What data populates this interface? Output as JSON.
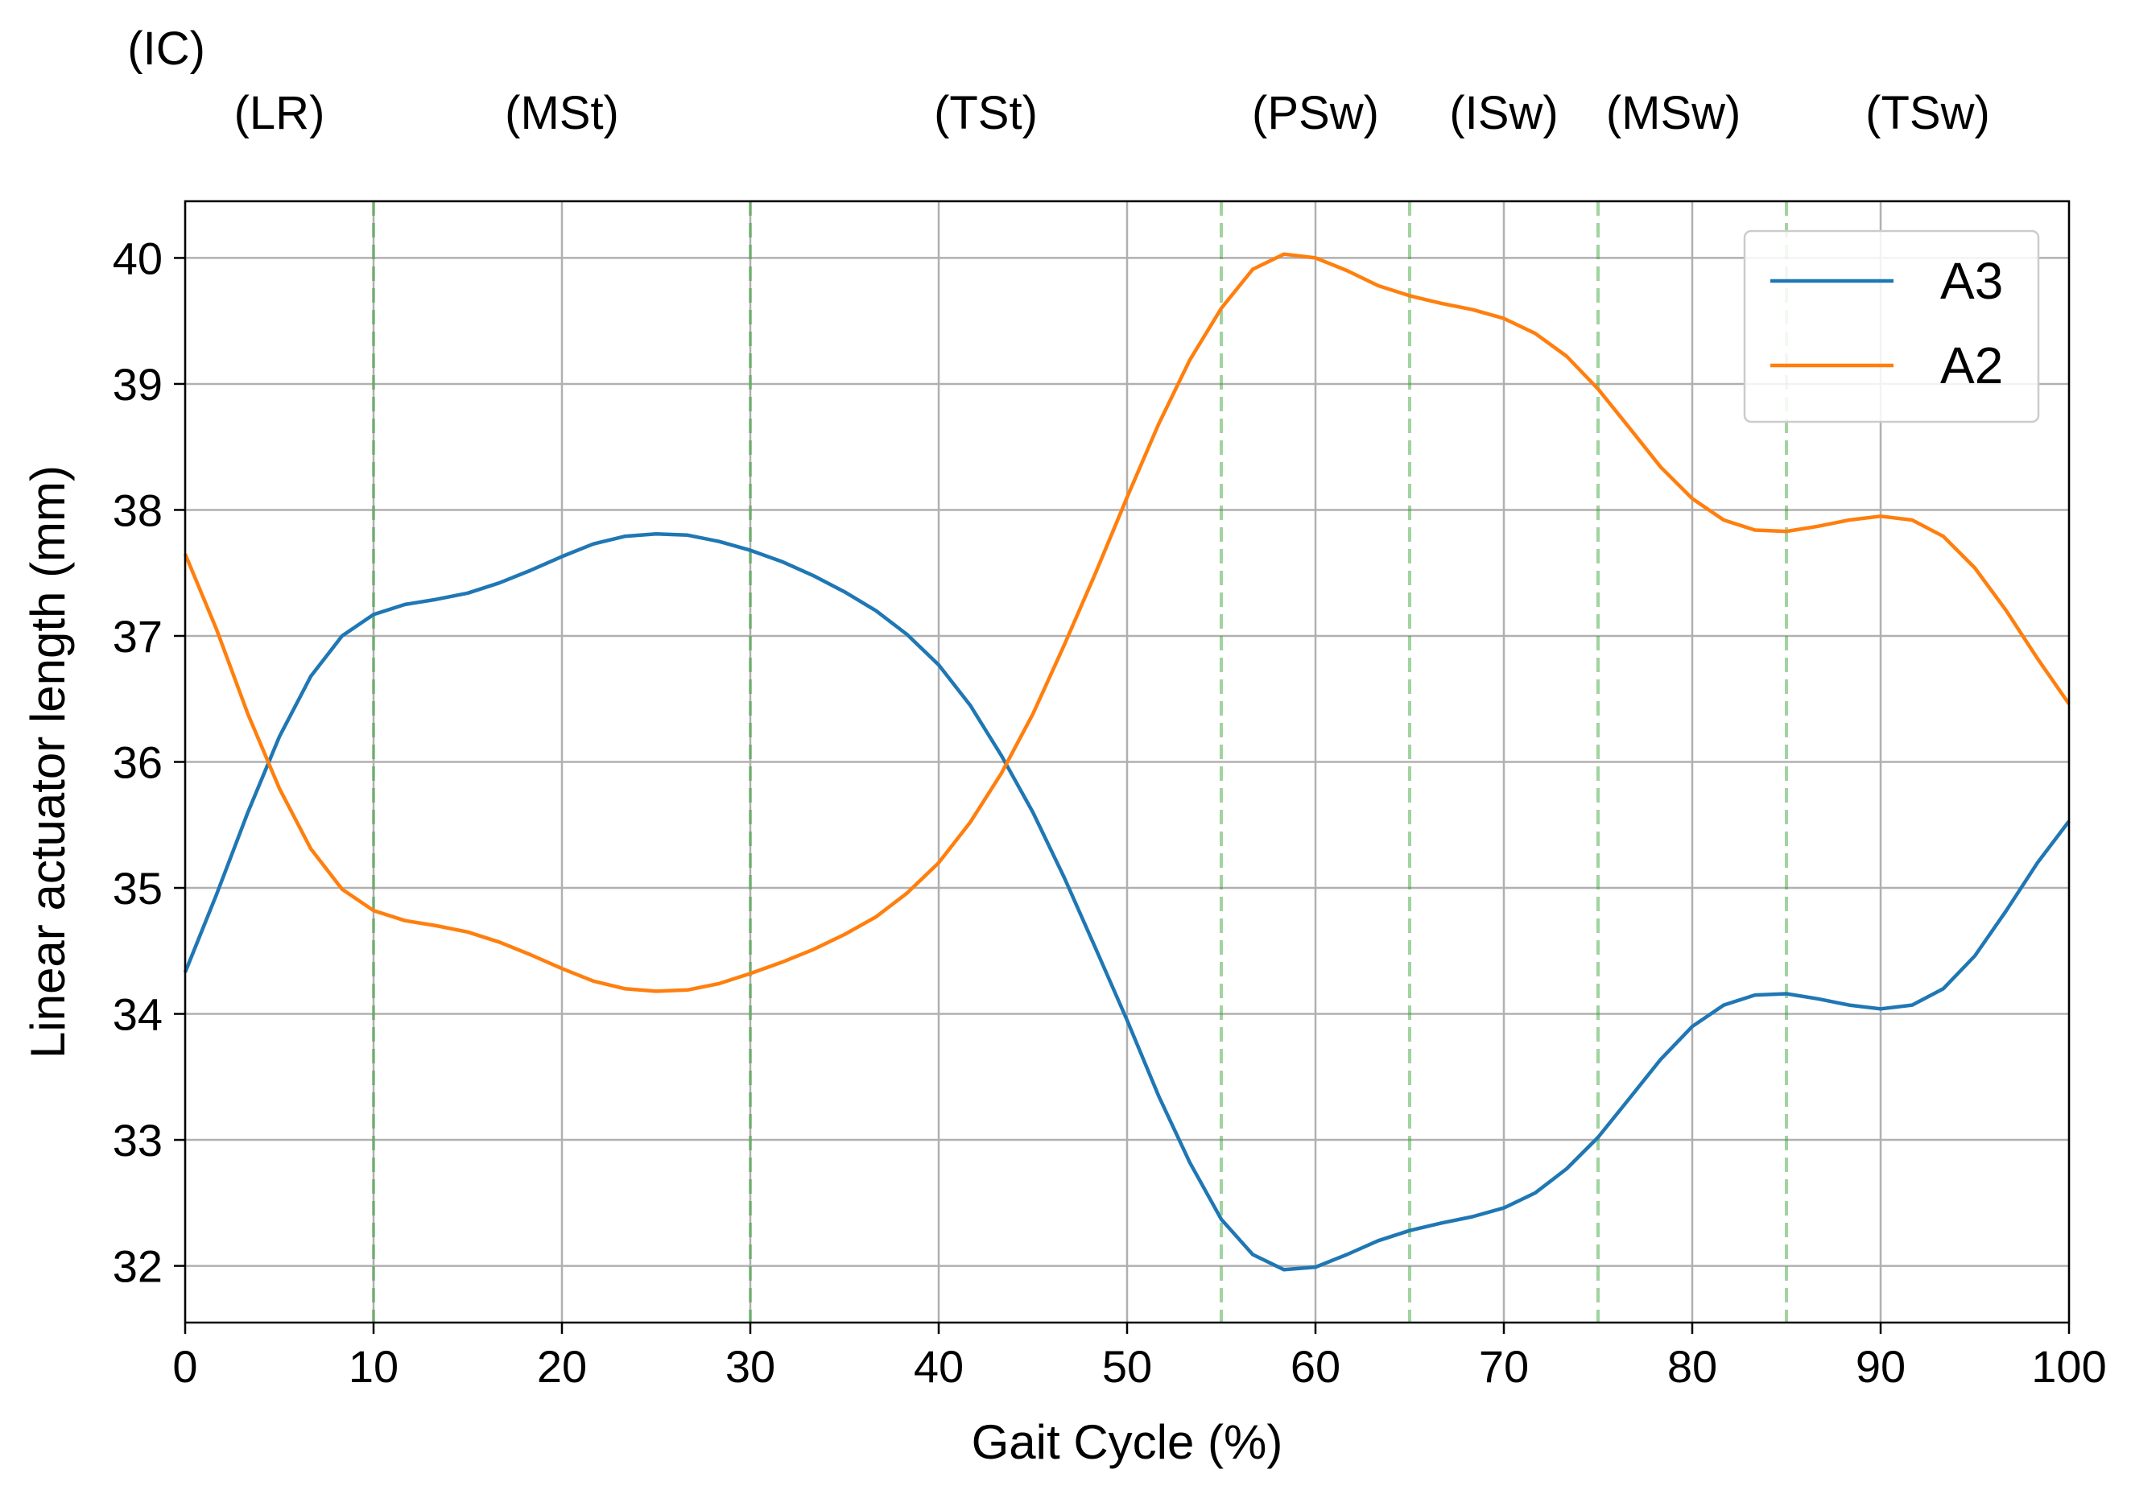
{
  "chart_data": {
    "type": "line",
    "xlabel": "Gait Cycle (%)",
    "ylabel": "Linear actuator length (mm)",
    "xlim": [
      0,
      100
    ],
    "ylim": [
      31.55,
      40.45
    ],
    "x_ticks": [
      0,
      10,
      20,
      30,
      40,
      50,
      60,
      70,
      80,
      90,
      100
    ],
    "y_ticks": [
      32,
      33,
      34,
      35,
      36,
      37,
      38,
      39,
      40
    ],
    "grid": true,
    "legend_position": "top-right",
    "phase_boundaries": [
      10,
      30,
      55,
      65,
      75,
      85
    ],
    "phase_labels": [
      {
        "text": "(IC)",
        "x": -1
      },
      {
        "text": "(LR)",
        "x": 5
      },
      {
        "text": "(MSt)",
        "x": 20
      },
      {
        "text": "(TSt)",
        "x": 42.5
      },
      {
        "text": "(PSw)",
        "x": 60
      },
      {
        "text": "(ISw)",
        "x": 70
      },
      {
        "text": "(MSw)",
        "x": 79
      },
      {
        "text": "(TSw)",
        "x": 92.5
      }
    ],
    "series": [
      {
        "name": "A3",
        "color": "#1f77b4",
        "x": [
          0,
          1.67,
          3.33,
          5,
          6.67,
          8.33,
          10,
          11.67,
          13.33,
          15,
          16.67,
          18.33,
          20,
          21.67,
          23.33,
          25,
          26.67,
          28.33,
          30,
          31.67,
          33.33,
          35,
          36.67,
          38.33,
          40,
          41.67,
          43.33,
          45,
          46.67,
          48.33,
          50,
          51.67,
          53.33,
          55,
          56.67,
          58.33,
          60,
          61.67,
          63.33,
          65,
          66.67,
          68.33,
          70,
          71.67,
          73.33,
          75,
          76.67,
          78.33,
          80,
          81.67,
          83.33,
          85,
          86.67,
          88.33,
          90,
          91.67,
          93.33,
          95,
          96.67,
          98.33,
          100
        ],
        "values": [
          34.33,
          34.95,
          35.6,
          36.2,
          36.68,
          37.0,
          37.17,
          37.25,
          37.29,
          37.34,
          37.42,
          37.52,
          37.63,
          37.73,
          37.79,
          37.81,
          37.8,
          37.75,
          37.68,
          37.59,
          37.48,
          37.35,
          37.2,
          37.01,
          36.77,
          36.45,
          36.05,
          35.6,
          35.08,
          34.52,
          33.95,
          33.35,
          32.82,
          32.37,
          32.09,
          31.97,
          31.99,
          32.09,
          32.2,
          32.28,
          32.34,
          32.39,
          32.46,
          32.58,
          32.77,
          33.02,
          33.33,
          33.64,
          33.9,
          34.07,
          34.15,
          34.16,
          34.12,
          34.07,
          34.04,
          34.07,
          34.2,
          34.46,
          34.82,
          35.2,
          35.53
        ]
      },
      {
        "name": "A2",
        "color": "#ff7f0e",
        "x": [
          0,
          1.67,
          3.33,
          5,
          6.67,
          8.33,
          10,
          11.67,
          13.33,
          15,
          16.67,
          18.33,
          20,
          21.67,
          23.33,
          25,
          26.67,
          28.33,
          30,
          31.67,
          33.33,
          35,
          36.67,
          38.33,
          40,
          41.67,
          43.33,
          45,
          46.67,
          48.33,
          50,
          51.67,
          53.33,
          55,
          56.67,
          58.33,
          60,
          61.67,
          63.33,
          65,
          66.67,
          68.33,
          70,
          71.67,
          73.33,
          75,
          76.67,
          78.33,
          80,
          81.67,
          83.33,
          85,
          86.67,
          88.33,
          90,
          91.67,
          93.33,
          95,
          96.67,
          98.33,
          100
        ],
        "values": [
          37.65,
          37.05,
          36.38,
          35.79,
          35.31,
          34.99,
          34.82,
          34.74,
          34.7,
          34.65,
          34.57,
          34.47,
          34.36,
          34.26,
          34.2,
          34.18,
          34.19,
          34.24,
          34.32,
          34.41,
          34.51,
          34.63,
          34.77,
          34.96,
          35.2,
          35.52,
          35.91,
          36.38,
          36.93,
          37.5,
          38.1,
          38.68,
          39.19,
          39.6,
          39.91,
          40.03,
          40.0,
          39.9,
          39.78,
          39.7,
          39.64,
          39.59,
          39.52,
          39.4,
          39.22,
          38.96,
          38.65,
          38.34,
          38.09,
          37.92,
          37.84,
          37.83,
          37.87,
          37.92,
          37.95,
          37.92,
          37.79,
          37.54,
          37.2,
          36.82,
          36.46
        ]
      }
    ]
  }
}
